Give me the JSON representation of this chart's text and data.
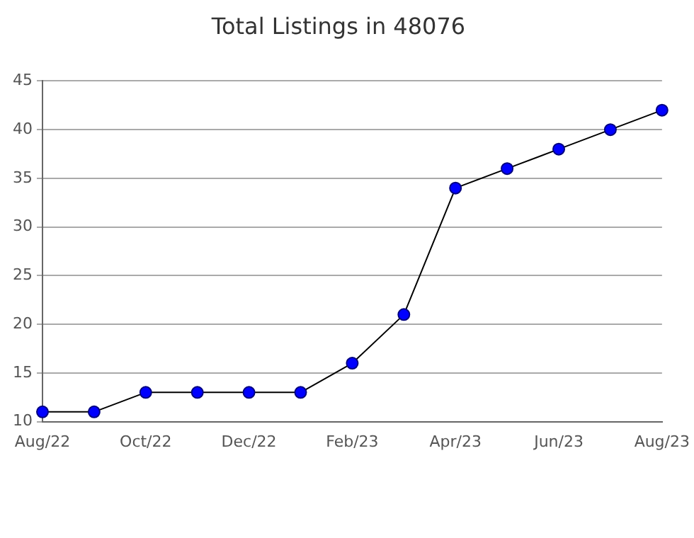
{
  "chart_data": {
    "type": "line",
    "title": "Total Listings in 48076",
    "categories": [
      "Aug/22",
      null,
      "Oct/22",
      null,
      "Dec/22",
      null,
      "Feb/23",
      null,
      "Apr/23",
      null,
      "Jun/23",
      null,
      "Aug/23"
    ],
    "series": [
      {
        "color": "#0000ff",
        "values": [
          11,
          11,
          13,
          13,
          13,
          13,
          16,
          21,
          34,
          36,
          38,
          40,
          42
        ]
      }
    ],
    "ylim": [
      10,
      45
    ],
    "yticks": [
      10,
      15,
      20,
      25,
      30,
      35,
      40,
      45
    ],
    "grid": "y",
    "legend": false,
    "marker": "circle",
    "line_style": "solid"
  }
}
